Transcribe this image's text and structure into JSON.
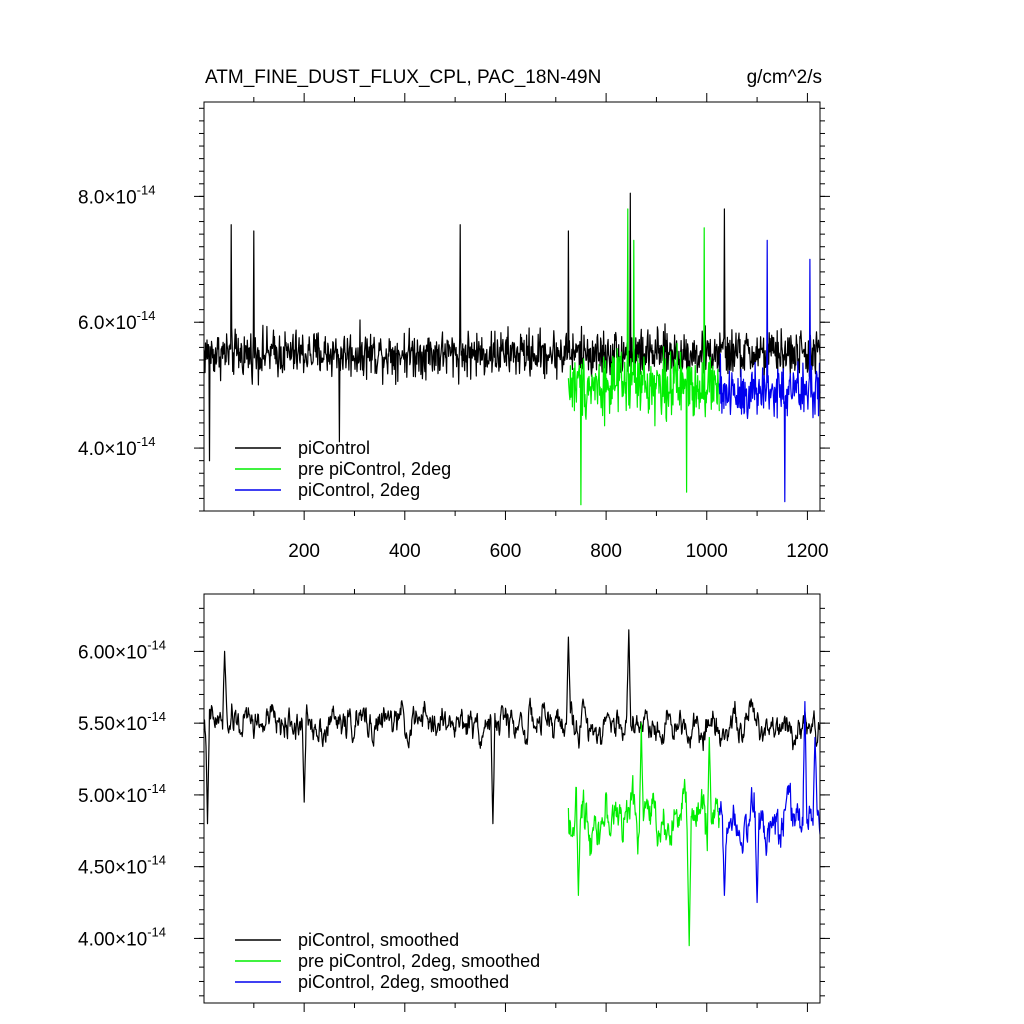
{
  "chart_data": [
    {
      "type": "line",
      "panel": "top",
      "title_left": "ATM_FINE_DUST_FLUX_CPL, PAC_18N-49N",
      "title_right": "g/cm^2/s",
      "xlim": [
        1,
        1225
      ],
      "ylim": [
        3e-14,
        9.5e-14
      ],
      "xticks": [
        200,
        400,
        600,
        800,
        1000,
        1200
      ],
      "xtick_labels": [
        "200",
        "400",
        "600",
        "800",
        "1000",
        "1200"
      ],
      "yticks": [
        4e-14,
        6e-14,
        8e-14
      ],
      "ytick_mantissas": [
        "4.0",
        "6.0",
        "8.0"
      ],
      "ytick_sep": "×10",
      "ytick_exp": "-14",
      "legend_position": "bottom-left",
      "series": [
        {
          "name": "piControl",
          "color": "#000000",
          "x_start": 1,
          "x_end": 1225,
          "mean": 5.5e-14,
          "amp": 5.5e-15,
          "spikes": [
            [
              55,
              7.55e-14
            ],
            [
              100,
              7.45e-14
            ],
            [
              510,
              7.55e-14
            ],
            [
              725,
              7.45e-14
            ],
            [
              848,
              8.05e-14
            ],
            [
              1035,
              7.8e-14
            ],
            [
              12,
              3.8e-14
            ],
            [
              270,
              4.1e-14
            ]
          ]
        },
        {
          "name": "pre piControl, 2deg",
          "color": "#00ee00",
          "x_start": 725,
          "x_end": 1025,
          "mean": 5e-14,
          "amp": 7.5e-15,
          "spikes": [
            [
              750,
              3.1e-14
            ],
            [
              843,
              7.8e-14
            ],
            [
              855,
              7.3e-14
            ],
            [
              995,
              7.5e-14
            ],
            [
              960,
              3.3e-14
            ]
          ]
        },
        {
          "name": "piControl, 2deg",
          "color": "#0000ee",
          "x_start": 1025,
          "x_end": 1225,
          "mean": 4.9e-14,
          "amp": 7.2e-15,
          "spikes": [
            [
              1120,
              7.3e-14
            ],
            [
              1155,
              3.15e-14
            ],
            [
              1205,
              7e-14
            ]
          ]
        }
      ]
    },
    {
      "type": "line",
      "panel": "bottom",
      "xlim": [
        1,
        1225
      ],
      "ylim": [
        3.55e-14,
        6.4e-14
      ],
      "xticks": [
        200,
        400,
        600,
        800,
        1000,
        1200
      ],
      "yticks": [
        4e-14,
        4.5e-14,
        5e-14,
        5.5e-14,
        6e-14
      ],
      "ytick_mantissas": [
        "4.00",
        "4.50",
        "5.00",
        "5.50",
        "6.00"
      ],
      "ytick_sep": "×10",
      "ytick_exp": "-14",
      "legend_position": "bottom-left",
      "series": [
        {
          "name": "piControl, smoothed",
          "color": "#000000",
          "x_start": 1,
          "x_end": 1225,
          "mean": 5.5e-14,
          "amp": 2e-15,
          "spikes": [
            [
              8,
              4.8e-14
            ],
            [
              42,
              6e-14
            ],
            [
              575,
              4.8e-14
            ],
            [
              845,
              6.15e-14
            ],
            [
              725,
              6.1e-14
            ],
            [
              200,
              4.95e-14
            ]
          ]
        },
        {
          "name": "pre piControl, 2deg, smoothed",
          "color": "#00ee00",
          "x_start": 725,
          "x_end": 1025,
          "mean": 4.85e-14,
          "amp": 3e-15,
          "spikes": [
            [
              745,
              4.3e-14
            ],
            [
              965,
              3.95e-14
            ],
            [
              870,
              5.5e-14
            ],
            [
              1005,
              5.4e-14
            ]
          ]
        },
        {
          "name": "piControl, 2deg, smoothed",
          "color": "#0000ee",
          "x_start": 1025,
          "x_end": 1225,
          "mean": 4.85e-14,
          "amp": 2.8e-15,
          "spikes": [
            [
              1035,
              4.3e-14
            ],
            [
              1100,
              4.25e-14
            ],
            [
              1195,
              5.65e-14
            ],
            [
              1215,
              5.4e-14
            ]
          ]
        }
      ]
    }
  ]
}
